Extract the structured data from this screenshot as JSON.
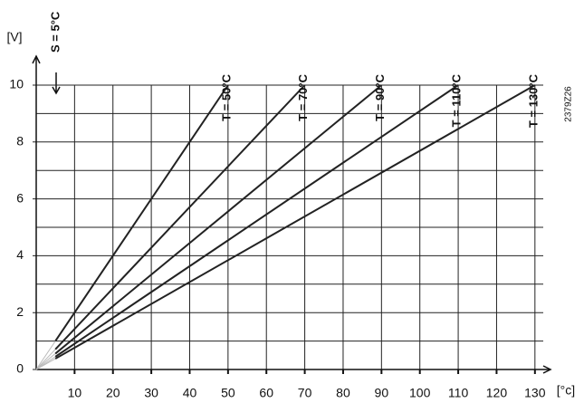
{
  "chart_data": {
    "type": "line",
    "y_unit_label": "[V]",
    "x_unit_label": "[°c]",
    "annotation": "S = 5°C",
    "code": "2379Z26",
    "series": [
      {
        "name": "T = 50°C",
        "color": "#222222",
        "x": [
          5,
          50
        ],
        "values": [
          1,
          10
        ]
      },
      {
        "name": "T = 70°C",
        "color": "#222222",
        "x": [
          5,
          70
        ],
        "values": [
          0.71,
          10
        ]
      },
      {
        "name": "T = 90°C",
        "color": "#222222",
        "x": [
          5,
          90
        ],
        "values": [
          0.56,
          10
        ]
      },
      {
        "name": "T = 110°C",
        "color": "#222222",
        "x": [
          5,
          110
        ],
        "values": [
          0.45,
          10
        ]
      },
      {
        "name": "T = 130°C",
        "color": "#222222",
        "x": [
          5,
          130
        ],
        "values": [
          0.38,
          10
        ]
      }
    ],
    "xlim": [
      0,
      135
    ],
    "ylim": [
      0,
      10
    ],
    "xticks": [
      10,
      20,
      30,
      40,
      50,
      60,
      70,
      80,
      90,
      100,
      110,
      120,
      130
    ],
    "yticks": [
      0,
      2,
      4,
      6,
      8,
      10
    ],
    "y_minor_ticks": [
      1,
      3,
      5,
      7,
      9
    ],
    "grid": true
  }
}
